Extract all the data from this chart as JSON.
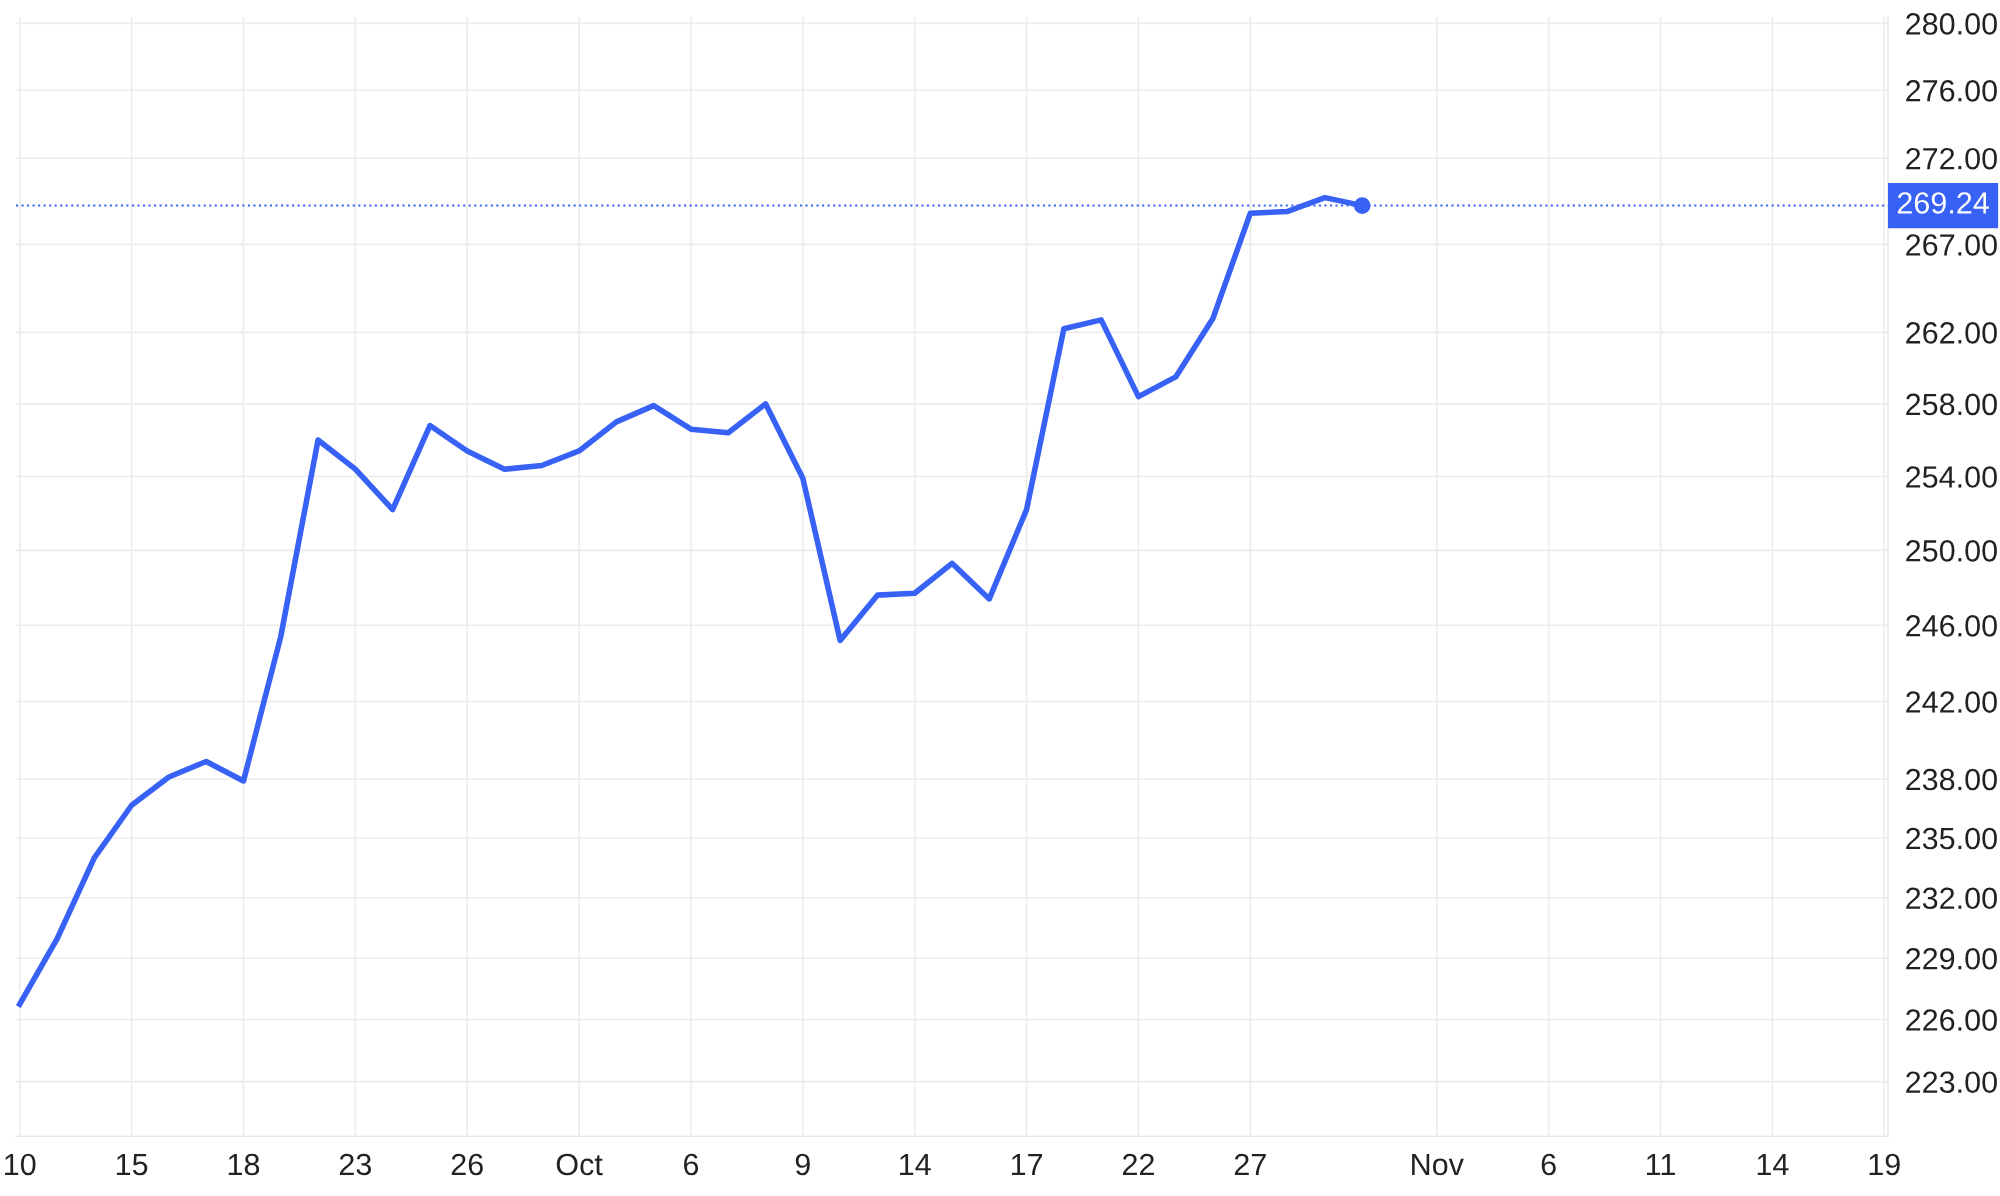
{
  "chart_data": {
    "type": "line",
    "categories": [
      "10",
      null,
      null,
      "15",
      null,
      null,
      "18",
      null,
      null,
      "23",
      null,
      null,
      "26",
      null,
      null,
      "Oct",
      null,
      null,
      "6",
      null,
      null,
      "9",
      null,
      null,
      "14",
      null,
      null,
      "17",
      null,
      null,
      "22",
      null,
      null,
      "27",
      null,
      null,
      null,
      null,
      "Nov",
      null,
      null,
      "6",
      null,
      null,
      "11",
      null,
      null,
      "14",
      null,
      null,
      "19"
    ],
    "series": [
      {
        "color": "#3861f6",
        "values": [
          226.75,
          229.95,
          234.0,
          236.66,
          238.1,
          238.9,
          237.9,
          245.4,
          256.0,
          254.4,
          252.2,
          256.8,
          255.4,
          254.4,
          254.6,
          255.4,
          257.0,
          257.9,
          256.6,
          256.4,
          258.0,
          253.9,
          245.2,
          247.6,
          247.7,
          249.3,
          247.4,
          252.2,
          262.2,
          262.7,
          258.4,
          259.5,
          262.8,
          268.8,
          268.9,
          269.7,
          269.24,
          null,
          null,
          null,
          null,
          null,
          null,
          null,
          null,
          null,
          null,
          null,
          null,
          null,
          null
        ]
      }
    ],
    "log": "y",
    "ylim": [
      220.4,
      280.4
    ],
    "yticks": [
      {
        "value": 223,
        "label": "223.00"
      },
      {
        "value": 226,
        "label": "226.00"
      },
      {
        "value": 229,
        "label": "229.00"
      },
      {
        "value": 232,
        "label": "232.00"
      },
      {
        "value": 235,
        "label": "235.00"
      },
      {
        "value": 238,
        "label": "238.00"
      },
      {
        "value": 242,
        "label": "242.00"
      },
      {
        "value": 246,
        "label": "246.00"
      },
      {
        "value": 250,
        "label": "250.00"
      },
      {
        "value": 254,
        "label": "254.00"
      },
      {
        "value": 258,
        "label": "258.00"
      },
      {
        "value": 262,
        "label": "262.00"
      },
      {
        "value": 267,
        "label": "267.00"
      },
      {
        "value": 272,
        "label": "272.00"
      },
      {
        "value": 276,
        "label": "276.00"
      },
      {
        "value": 280,
        "label": "280.00"
      }
    ],
    "ref_lines": [
      {
        "axis": "y",
        "value": 269.24,
        "label": "269.24",
        "color": "#3861f6",
        "line_style": "dotted"
      }
    ],
    "grid": true,
    "legend": false
  }
}
